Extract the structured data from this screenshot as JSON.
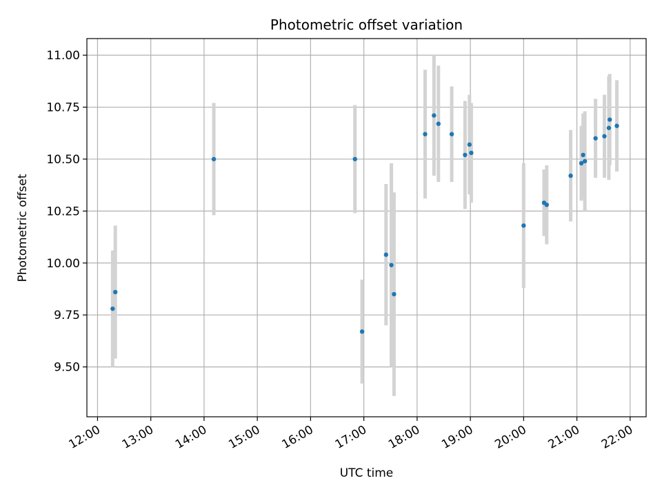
{
  "chart_data": {
    "type": "scatter",
    "title": "Photometric offset variation",
    "xlabel": "UTC time",
    "ylabel": "Photometric offset",
    "grid": true,
    "legend": "none",
    "xlim": [
      "11:48",
      "22:18"
    ],
    "ylim": [
      9.26,
      11.08
    ],
    "x_ticks": [
      "12:00",
      "13:00",
      "14:00",
      "15:00",
      "16:00",
      "17:00",
      "18:00",
      "19:00",
      "20:00",
      "21:00",
      "22:00"
    ],
    "y_ticks": [
      "9.50",
      "9.75",
      "10.00",
      "10.25",
      "10.50",
      "10.75",
      "11.00"
    ],
    "colors": {
      "point": "#1f77b4",
      "errorbar": "#d3d3d3",
      "grid": "#b0b0b0"
    },
    "points": [
      {
        "x": "12:17",
        "y": 9.78,
        "err": 0.28
      },
      {
        "x": "12:20",
        "y": 9.86,
        "err": 0.32
      },
      {
        "x": "14:11",
        "y": 10.5,
        "err": 0.27
      },
      {
        "x": "16:50",
        "y": 10.5,
        "err": 0.26
      },
      {
        "x": "16:58",
        "y": 9.67,
        "err": 0.25
      },
      {
        "x": "17:25",
        "y": 10.04,
        "err": 0.34
      },
      {
        "x": "17:31",
        "y": 9.99,
        "err": 0.49
      },
      {
        "x": "17:34",
        "y": 9.85,
        "err": 0.49
      },
      {
        "x": "18:09",
        "y": 10.62,
        "err": 0.31
      },
      {
        "x": "18:19",
        "y": 10.71,
        "err": 0.29
      },
      {
        "x": "18:24",
        "y": 10.67,
        "err": 0.28
      },
      {
        "x": "18:39",
        "y": 10.62,
        "err": 0.23
      },
      {
        "x": "18:54",
        "y": 10.52,
        "err": 0.26
      },
      {
        "x": "18:59",
        "y": 10.57,
        "err": 0.24
      },
      {
        "x": "19:01",
        "y": 10.53,
        "err": 0.24
      },
      {
        "x": "20:00",
        "y": 10.18,
        "err": 0.3
      },
      {
        "x": "20:23",
        "y": 10.29,
        "err": 0.16
      },
      {
        "x": "20:26",
        "y": 10.28,
        "err": 0.19
      },
      {
        "x": "20:53",
        "y": 10.42,
        "err": 0.22
      },
      {
        "x": "21:05",
        "y": 10.48,
        "err": 0.18
      },
      {
        "x": "21:07",
        "y": 10.52,
        "err": 0.2
      },
      {
        "x": "21:09",
        "y": 10.49,
        "err": 0.24
      },
      {
        "x": "21:21",
        "y": 10.6,
        "err": 0.19
      },
      {
        "x": "21:31",
        "y": 10.61,
        "err": 0.2
      },
      {
        "x": "21:36",
        "y": 10.65,
        "err": 0.25
      },
      {
        "x": "21:37",
        "y": 10.69,
        "err": 0.22
      },
      {
        "x": "21:45",
        "y": 10.66,
        "err": 0.22
      }
    ]
  }
}
